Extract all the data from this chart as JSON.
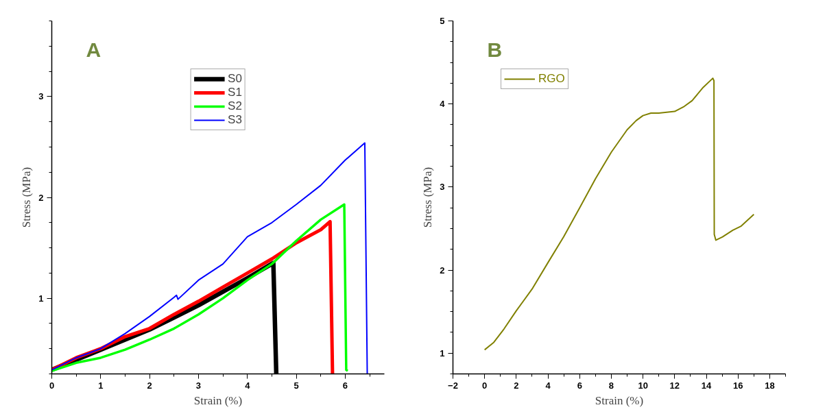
{
  "chart_data": [
    {
      "type": "line",
      "title": "A",
      "xlabel": "Strain (%)",
      "ylabel": "Stress (MPa)",
      "xlim": [
        0,
        6.8
      ],
      "ylim": [
        0.25,
        3.75
      ],
      "xticks": [
        0,
        1,
        2,
        3,
        4,
        5,
        6
      ],
      "yticks": [
        1,
        2,
        3
      ],
      "legend": "top center",
      "series": [
        {
          "name": "S0",
          "color": "#000000",
          "x": [
            0,
            1,
            2,
            3,
            4,
            4.53,
            4.59
          ],
          "values": [
            0.29,
            0.49,
            0.69,
            0.93,
            1.2,
            1.35,
            0.25
          ]
        },
        {
          "name": "S1",
          "color": "#ff0000",
          "x": [
            0,
            0.5,
            1,
            1.5,
            2,
            2.5,
            3,
            3.5,
            4,
            4.5,
            5,
            5.5,
            5.69,
            5.74
          ],
          "values": [
            0.29,
            0.41,
            0.5,
            0.62,
            0.7,
            0.84,
            0.97,
            1.11,
            1.25,
            1.39,
            1.55,
            1.68,
            1.76,
            0.25
          ]
        },
        {
          "name": "S2",
          "color": "#00ff00",
          "x": [
            0,
            0.5,
            1,
            1.5,
            2,
            2.5,
            3,
            3.5,
            4,
            4.5,
            5,
            5.5,
            5.98,
            6.02,
            6.05
          ],
          "values": [
            0.28,
            0.36,
            0.41,
            0.49,
            0.59,
            0.7,
            0.84,
            1.0,
            1.18,
            1.34,
            1.57,
            1.78,
            1.93,
            0.29,
            0.28
          ]
        },
        {
          "name": "S3",
          "color": "#0000ff",
          "x": [
            0,
            0.5,
            1,
            1.5,
            2,
            2.5,
            2.55,
            2.58,
            3,
            3.5,
            4,
            4.5,
            5,
            5.5,
            6,
            6.4,
            6.45
          ],
          "values": [
            0.29,
            0.41,
            0.5,
            0.65,
            0.82,
            1.01,
            1.03,
            0.99,
            1.18,
            1.34,
            1.61,
            1.75,
            1.93,
            2.12,
            2.37,
            2.54,
            0.25
          ]
        }
      ]
    },
    {
      "type": "line",
      "title": "B",
      "xlabel": "Strain (%)",
      "ylabel": "Stress (MPa)",
      "xlim": [
        -2,
        19
      ],
      "ylim": [
        0.75,
        5
      ],
      "xticks": [
        -2,
        0,
        2,
        4,
        6,
        8,
        10,
        12,
        14,
        16,
        18
      ],
      "yticks": [
        1,
        2,
        3,
        4,
        5
      ],
      "legend": "top left",
      "series": [
        {
          "name": "RGO",
          "color": "#808000",
          "x": [
            0,
            0.58,
            1.22,
            2,
            2.99,
            4,
            4.99,
            6,
            7,
            8,
            9,
            9.57,
            10,
            10.5,
            11,
            12,
            12.6,
            13.1,
            13.8,
            14.41,
            14.48,
            14.5,
            14.6,
            15.02,
            15.67,
            16.2,
            17.0
          ],
          "values": [
            1.04,
            1.13,
            1.29,
            1.51,
            1.77,
            2.09,
            2.4,
            2.75,
            3.1,
            3.42,
            3.69,
            3.8,
            3.86,
            3.89,
            3.89,
            3.91,
            3.97,
            4.04,
            4.2,
            4.31,
            4.28,
            2.43,
            2.36,
            2.4,
            2.48,
            2.53,
            2.67
          ]
        }
      ]
    }
  ]
}
